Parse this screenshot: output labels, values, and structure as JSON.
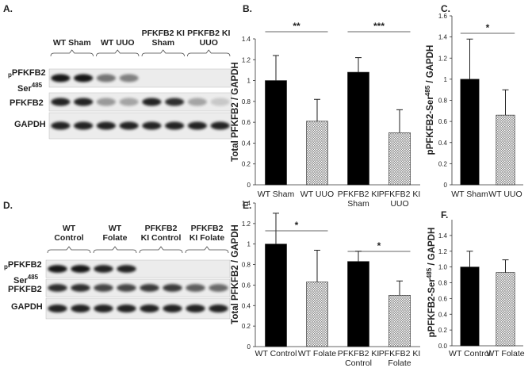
{
  "blots": [
    {
      "label": "A.",
      "columns": [
        "WT Sham",
        "WT UUO",
        "PFKFB2 KI Sham",
        "PFKFB2 KI UUO"
      ],
      "rows": [
        {
          "prefix": "p",
          "name": "PFKFB2",
          "site": "Ser",
          "sup": "485"
        },
        {
          "name": "PFKFB2"
        },
        {
          "name": "GAPDH"
        }
      ]
    },
    {
      "label": "D.",
      "columns": [
        "WT Control",
        "WT Folate",
        "PFKFB2 KI Control",
        "PFKFB2 KI Folate"
      ],
      "rows": [
        {
          "prefix": "p",
          "name": "PFKFB2",
          "site": "Ser",
          "sup": "485"
        },
        {
          "name": "PFKFB2"
        },
        {
          "name": "GAPDH"
        }
      ]
    }
  ],
  "chart_data": [
    {
      "type": "bar",
      "label": "B.",
      "ylabel": [
        "Total PFKFB2 / GAPDH"
      ],
      "categories": [
        "WT Sham",
        "WT UUO",
        "PFKFB2 KI Sham",
        "PFKFB2 KI UUO"
      ],
      "values": [
        1.0,
        0.61,
        1.08,
        0.5
      ],
      "errors": [
        0.24,
        0.21,
        0.14,
        0.22
      ],
      "colors": [
        "#000000",
        "#8c8c8c",
        "#000000",
        "#8c8c8c"
      ],
      "ylim": [
        0,
        1.4
      ],
      "yticks": [
        0,
        0.2,
        0.4,
        0.6,
        0.8,
        1,
        1.2,
        1.4
      ],
      "significance": [
        "**",
        "***"
      ]
    },
    {
      "type": "bar",
      "label": "C.",
      "ylabel": [
        "pPFKFB2-Ser",
        "485",
        " / GAPDH"
      ],
      "categories": [
        "WT Sham",
        "WT UUO"
      ],
      "values": [
        1.0,
        0.66
      ],
      "errors": [
        0.38,
        0.24
      ],
      "colors": [
        "#000000",
        "#8c8c8c"
      ],
      "ylim": [
        0,
        1.6
      ],
      "yticks": [
        0,
        0.2,
        0.4,
        0.6,
        0.8,
        1,
        1.2,
        1.4,
        1.6
      ],
      "significance": [
        "*"
      ]
    },
    {
      "type": "bar",
      "label": "E.",
      "ylabel": [
        "Total PFKFB2 / GAPDH"
      ],
      "categories": [
        "WT Control",
        "WT Folate",
        "PFKFB2 KI Control",
        "PFKFB2 KI Folate"
      ],
      "values": [
        1.0,
        0.63,
        0.83,
        0.5
      ],
      "errors": [
        0.3,
        0.31,
        0.1,
        0.14
      ],
      "colors": [
        "#000000",
        "#8c8c8c",
        "#000000",
        "#8c8c8c"
      ],
      "ylim": [
        0,
        1.4
      ],
      "yticks": [
        0,
        0.2,
        0.4,
        0.6,
        0.8,
        1,
        1.2,
        1.4
      ],
      "significance": [
        "*",
        "*"
      ]
    },
    {
      "type": "bar",
      "label": "F.",
      "ylabel": [
        "pPFKFB2-Ser",
        "485",
        " / GAPDH"
      ],
      "categories": [
        "WT Control",
        "WT Folate"
      ],
      "values": [
        1.0,
        0.93
      ],
      "errors": [
        0.2,
        0.16
      ],
      "colors": [
        "#000000",
        "#8c8c8c"
      ],
      "ylim": [
        0,
        1.6
      ],
      "yticks": [
        {
          "value": 0,
          "label": "0.0"
        },
        {
          "value": 0.2,
          "label": "0.2"
        },
        {
          "value": 0.4,
          "label": "0.4"
        },
        {
          "value": 0.6,
          "label": "0.6"
        },
        {
          "value": 0.8,
          "label": "0.8"
        },
        {
          "value": 1,
          "label": "1.0"
        },
        {
          "value": 1.2,
          "label": "1.2"
        },
        {
          "value": 1.4,
          "label": "1.4"
        }
      ],
      "significance": []
    }
  ]
}
